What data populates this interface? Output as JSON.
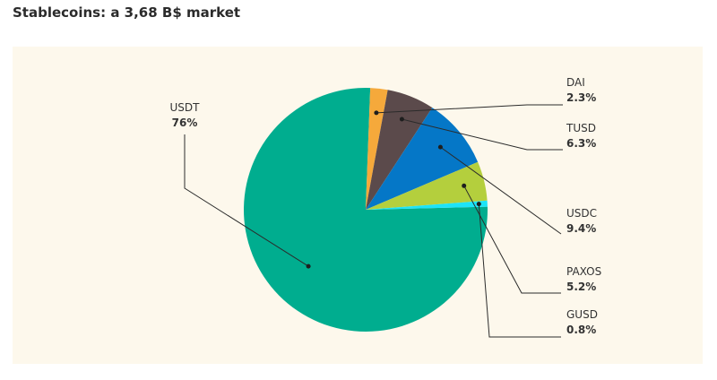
{
  "chart_data": {
    "type": "pie",
    "title": "Stablecoins: a 3,68 B$ market",
    "slices": [
      {
        "label": "USDT",
        "value": 76,
        "value_label": "76%",
        "color": "#00ad8f"
      },
      {
        "label": "DAI",
        "value": 2.3,
        "value_label": "2.3%",
        "color": "#f5a93b"
      },
      {
        "label": "TUSD",
        "value": 6.3,
        "value_label": "6.3%",
        "color": "#5b4a4b"
      },
      {
        "label": "USDC",
        "value": 9.4,
        "value_label": "9.4%",
        "color": "#0577c7"
      },
      {
        "label": "PAXOS",
        "value": 5.2,
        "value_label": "5.2%",
        "color": "#b4cf3d"
      },
      {
        "label": "GUSD",
        "value": 0.8,
        "value_label": "0.8%",
        "color": "#1de4f7"
      }
    ]
  }
}
